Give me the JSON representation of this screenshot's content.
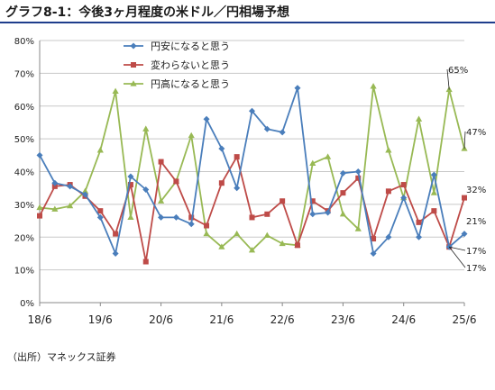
{
  "title": "グラフ8-1：今後3ヶ月程度の米ドル／円相場予想",
  "source": "（出所）マネックス証券",
  "chart_data": {
    "type": "line",
    "y_ticks": [
      "0%",
      "10%",
      "20%",
      "30%",
      "40%",
      "50%",
      "60%",
      "70%",
      "80%"
    ],
    "ylim": [
      0,
      80
    ],
    "x_ticks": [
      "18/6",
      "19/6",
      "20/6",
      "21/6",
      "22/6",
      "23/6",
      "24/6",
      "25/6"
    ],
    "legend_position": "top-left",
    "grid": "horizontal",
    "series": [
      {
        "name": "円安になると思う",
        "color": "#4a7ebb",
        "marker": "diamond",
        "values": [
          45,
          36.5,
          35.5,
          33,
          26,
          15,
          38.5,
          34.5,
          26,
          26,
          24,
          56,
          47,
          35,
          58.5,
          53,
          52,
          65.5,
          27,
          27.5,
          39.5,
          40,
          15,
          20,
          32,
          20,
          39,
          17,
          21
        ]
      },
      {
        "name": "変わらないと思う",
        "color": "#be4b48",
        "marker": "square",
        "values": [
          26.5,
          35.5,
          36,
          32.5,
          28,
          21,
          36,
          12.5,
          43,
          37,
          26,
          23.5,
          36.5,
          44.5,
          26,
          27,
          31,
          17.5,
          31,
          28,
          33.5,
          38,
          19.5,
          34,
          36,
          24.5,
          28,
          17,
          32
        ]
      },
      {
        "name": "円高になると思う",
        "color": "#98b954",
        "marker": "triangle",
        "values": [
          29,
          28.5,
          29.5,
          34,
          46.5,
          64.5,
          26,
          53,
          31,
          37,
          51,
          21,
          17,
          21,
          16,
          20.5,
          18,
          17.5,
          42.5,
          44.5,
          27,
          22.5,
          66,
          46.5,
          32,
          56,
          33.5,
          65,
          47
        ]
      }
    ],
    "annotations": [
      "65%",
      "47%",
      "32%",
      "21%",
      "17%",
      "17%"
    ]
  }
}
